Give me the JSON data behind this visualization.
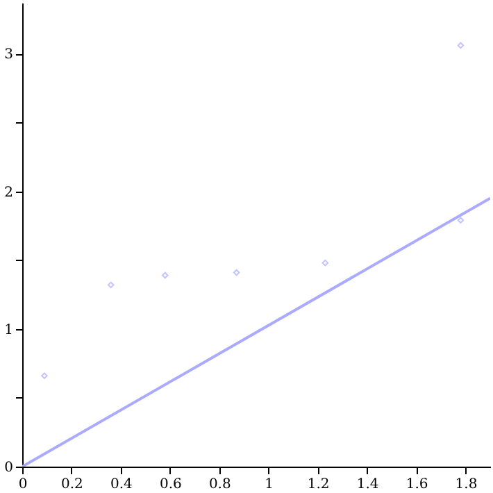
{
  "chart_data": {
    "type": "scatter",
    "marker": "diamond",
    "grid": false,
    "xlim": [
      0,
      1.9
    ],
    "ylim": [
      0,
      3.37
    ],
    "xticks": [
      0,
      0.2,
      0.4,
      0.6,
      0.8,
      1,
      1.2,
      1.4,
      1.6,
      1.8
    ],
    "yticks": [
      0,
      {
        "value": 0.5,
        "label": null
      },
      1,
      {
        "value": 1.5,
        "label": null
      },
      2,
      {
        "value": 2.5,
        "label": null
      },
      3
    ],
    "series": [
      {
        "type": "scatter",
        "color": "#aaaaff",
        "x": [
          0.09,
          0.36,
          0.58,
          0.87,
          1.23,
          1.78,
          1.78
        ],
        "values": [
          0.66,
          1.32,
          1.39,
          1.41,
          1.48,
          3.06,
          1.79
        ]
      },
      {
        "type": "line",
        "color": "#aaaaff",
        "marker": "none",
        "x": [
          0,
          1.9
        ],
        "values": [
          0,
          1.95
        ]
      }
    ]
  }
}
